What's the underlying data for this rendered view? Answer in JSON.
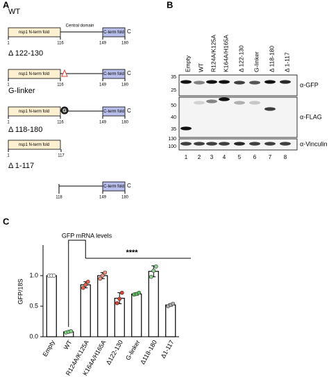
{
  "panel_a": {
    "label": "A",
    "constructs": [
      {
        "name": "WT",
        "n_domain": "nsp1 N-term fold",
        "central": "Central domain",
        "c_domain": "C-term fold",
        "c_end": "C",
        "positions": [
          "1",
          "116",
          "149",
          "180"
        ]
      },
      {
        "name": "Δ 122-130",
        "n_domain": "nsp1 N-term fold",
        "c_domain": "C-term fold",
        "c_end": "C",
        "positions": [
          "1",
          "116",
          "149",
          "180"
        ]
      },
      {
        "name": "G-linker",
        "n_domain": "nsp1 N-term fold",
        "linker": "G",
        "c_domain": "C-term fold",
        "c_end": "C",
        "positions": [
          "1",
          "116",
          "149",
          "180"
        ]
      },
      {
        "name": "Δ 118-180",
        "n_domain": "nsp1 N-term fold",
        "positions": [
          "1",
          "117"
        ]
      },
      {
        "name": "Δ 1-117",
        "c_domain": "C-term fold",
        "c_end": "C",
        "positions": [
          "118",
          "149",
          "180"
        ]
      }
    ]
  },
  "panel_b": {
    "label": "B",
    "lanes": [
      "Empty",
      "WT",
      "R124A/K125A",
      "K164A/H165A",
      "Δ 122-130",
      "G-linker",
      "Δ 118-180",
      "Δ 1-117"
    ],
    "lane_numbers": [
      "1",
      "2",
      "3",
      "4",
      "5",
      "6",
      "7",
      "8"
    ],
    "blots": [
      {
        "antibody": "α-GFP",
        "markers": [
          "35",
          "25"
        ]
      },
      {
        "antibody": "α-FLAG",
        "markers": [
          "50",
          "40",
          "35"
        ]
      },
      {
        "antibody": "α-Vinculin",
        "markers": [
          "130",
          "100"
        ]
      }
    ]
  },
  "chart_data": {
    "type": "bar",
    "panel_label": "C",
    "title": "GFP mRNA levels",
    "y_label": "GFP/18S",
    "categories": [
      "Empty",
      "WT",
      "R124A/K125A",
      "K164A/H165A",
      "Δ122-130",
      "G-linker",
      "Δ118-180",
      "Δ1-117"
    ],
    "values": [
      1.0,
      0.08,
      0.85,
      1.0,
      0.63,
      0.7,
      1.07,
      0.52
    ],
    "errors": [
      0,
      0.01,
      0.05,
      0.05,
      0.09,
      0.02,
      0.09,
      0.02
    ],
    "replicates": [
      [
        1.0,
        1.0,
        1.0
      ],
      [
        0.07,
        0.08,
        0.09
      ],
      [
        0.8,
        0.85,
        0.9
      ],
      [
        0.95,
        1.0,
        1.05
      ],
      [
        0.55,
        0.62,
        0.72
      ],
      [
        0.69,
        0.7,
        0.72
      ],
      [
        0.98,
        1.08,
        1.15
      ],
      [
        0.5,
        0.52,
        0.54
      ]
    ],
    "point_colors": [
      "#ffffff",
      "#7ed37e",
      "#e8604a",
      "#f0907a",
      "#d9412e",
      "#5cb85c",
      "#8fd18f",
      "#aaaaaa"
    ],
    "color": "#ffffff",
    "ylim": [
      0,
      1.5
    ],
    "yticks": [
      {
        "value": 0,
        "label": "0.0"
      },
      {
        "value": 0.5,
        "label": "0.5"
      },
      {
        "value": 1,
        "label": "1.0"
      }
    ],
    "significance": "****"
  }
}
